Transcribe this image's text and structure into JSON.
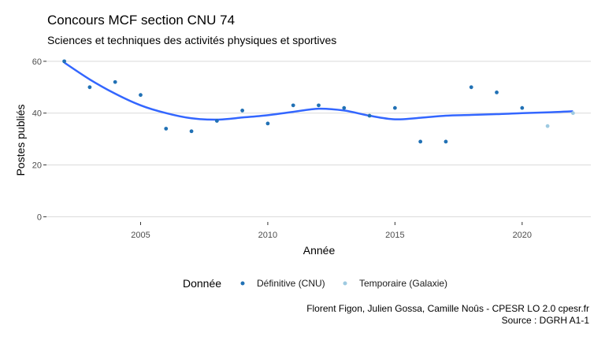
{
  "chart_data": {
    "type": "scatter",
    "title": "Concours MCF section CNU 74",
    "subtitle": "Sciences et techniques des activités physiques et sportives",
    "xlabel": "Année",
    "ylabel": "Postes publiés",
    "xlim": [
      2001.3,
      2022.7
    ],
    "ylim": [
      -2,
      63
    ],
    "x_ticks": [
      2005,
      2010,
      2015,
      2020
    ],
    "y_ticks": [
      0,
      20,
      40,
      60
    ],
    "grid": "horizontal",
    "legend": {
      "title": "Donnée",
      "position": "bottom"
    },
    "series": [
      {
        "name": "Définitive (CNU)",
        "color": "#2171b5",
        "points": [
          {
            "x": 2002,
            "y": 60
          },
          {
            "x": 2003,
            "y": 50
          },
          {
            "x": 2004,
            "y": 52
          },
          {
            "x": 2005,
            "y": 47
          },
          {
            "x": 2006,
            "y": 34
          },
          {
            "x": 2007,
            "y": 33
          },
          {
            "x": 2008,
            "y": 37
          },
          {
            "x": 2009,
            "y": 41
          },
          {
            "x": 2010,
            "y": 36
          },
          {
            "x": 2011,
            "y": 43
          },
          {
            "x": 2012,
            "y": 43
          },
          {
            "x": 2013,
            "y": 42
          },
          {
            "x": 2014,
            "y": 39
          },
          {
            "x": 2015,
            "y": 42
          },
          {
            "x": 2016,
            "y": 29
          },
          {
            "x": 2017,
            "y": 29
          },
          {
            "x": 2018,
            "y": 50
          },
          {
            "x": 2019,
            "y": 48
          },
          {
            "x": 2020,
            "y": 42
          }
        ]
      },
      {
        "name": "Temporaire (Galaxie)",
        "color": "#9ecae1",
        "points": [
          {
            "x": 2021,
            "y": 35
          },
          {
            "x": 2022,
            "y": 40
          }
        ]
      }
    ],
    "smooth": {
      "color": "#3366ff",
      "points": [
        {
          "x": 2002,
          "y": 59.5
        },
        {
          "x": 2003,
          "y": 53
        },
        {
          "x": 2004,
          "y": 47.5
        },
        {
          "x": 2005,
          "y": 43
        },
        {
          "x": 2006,
          "y": 40
        },
        {
          "x": 2007,
          "y": 38
        },
        {
          "x": 2008,
          "y": 37.5
        },
        {
          "x": 2009,
          "y": 38.3
        },
        {
          "x": 2010,
          "y": 39.2
        },
        {
          "x": 2011,
          "y": 40.5
        },
        {
          "x": 2012,
          "y": 41.7
        },
        {
          "x": 2013,
          "y": 41
        },
        {
          "x": 2014,
          "y": 39
        },
        {
          "x": 2015,
          "y": 37.6
        },
        {
          "x": 2016,
          "y": 38.2
        },
        {
          "x": 2017,
          "y": 39
        },
        {
          "x": 2018,
          "y": 39.3
        },
        {
          "x": 2019,
          "y": 39.6
        },
        {
          "x": 2020,
          "y": 40
        },
        {
          "x": 2021,
          "y": 40.3
        },
        {
          "x": 2022,
          "y": 40.7
        }
      ]
    },
    "caption": [
      "Florent Figon, Julien Gossa, Camille Noûs - CPESR LO 2.0 cpesr.fr",
      "Source : DGRH A1-1"
    ]
  }
}
